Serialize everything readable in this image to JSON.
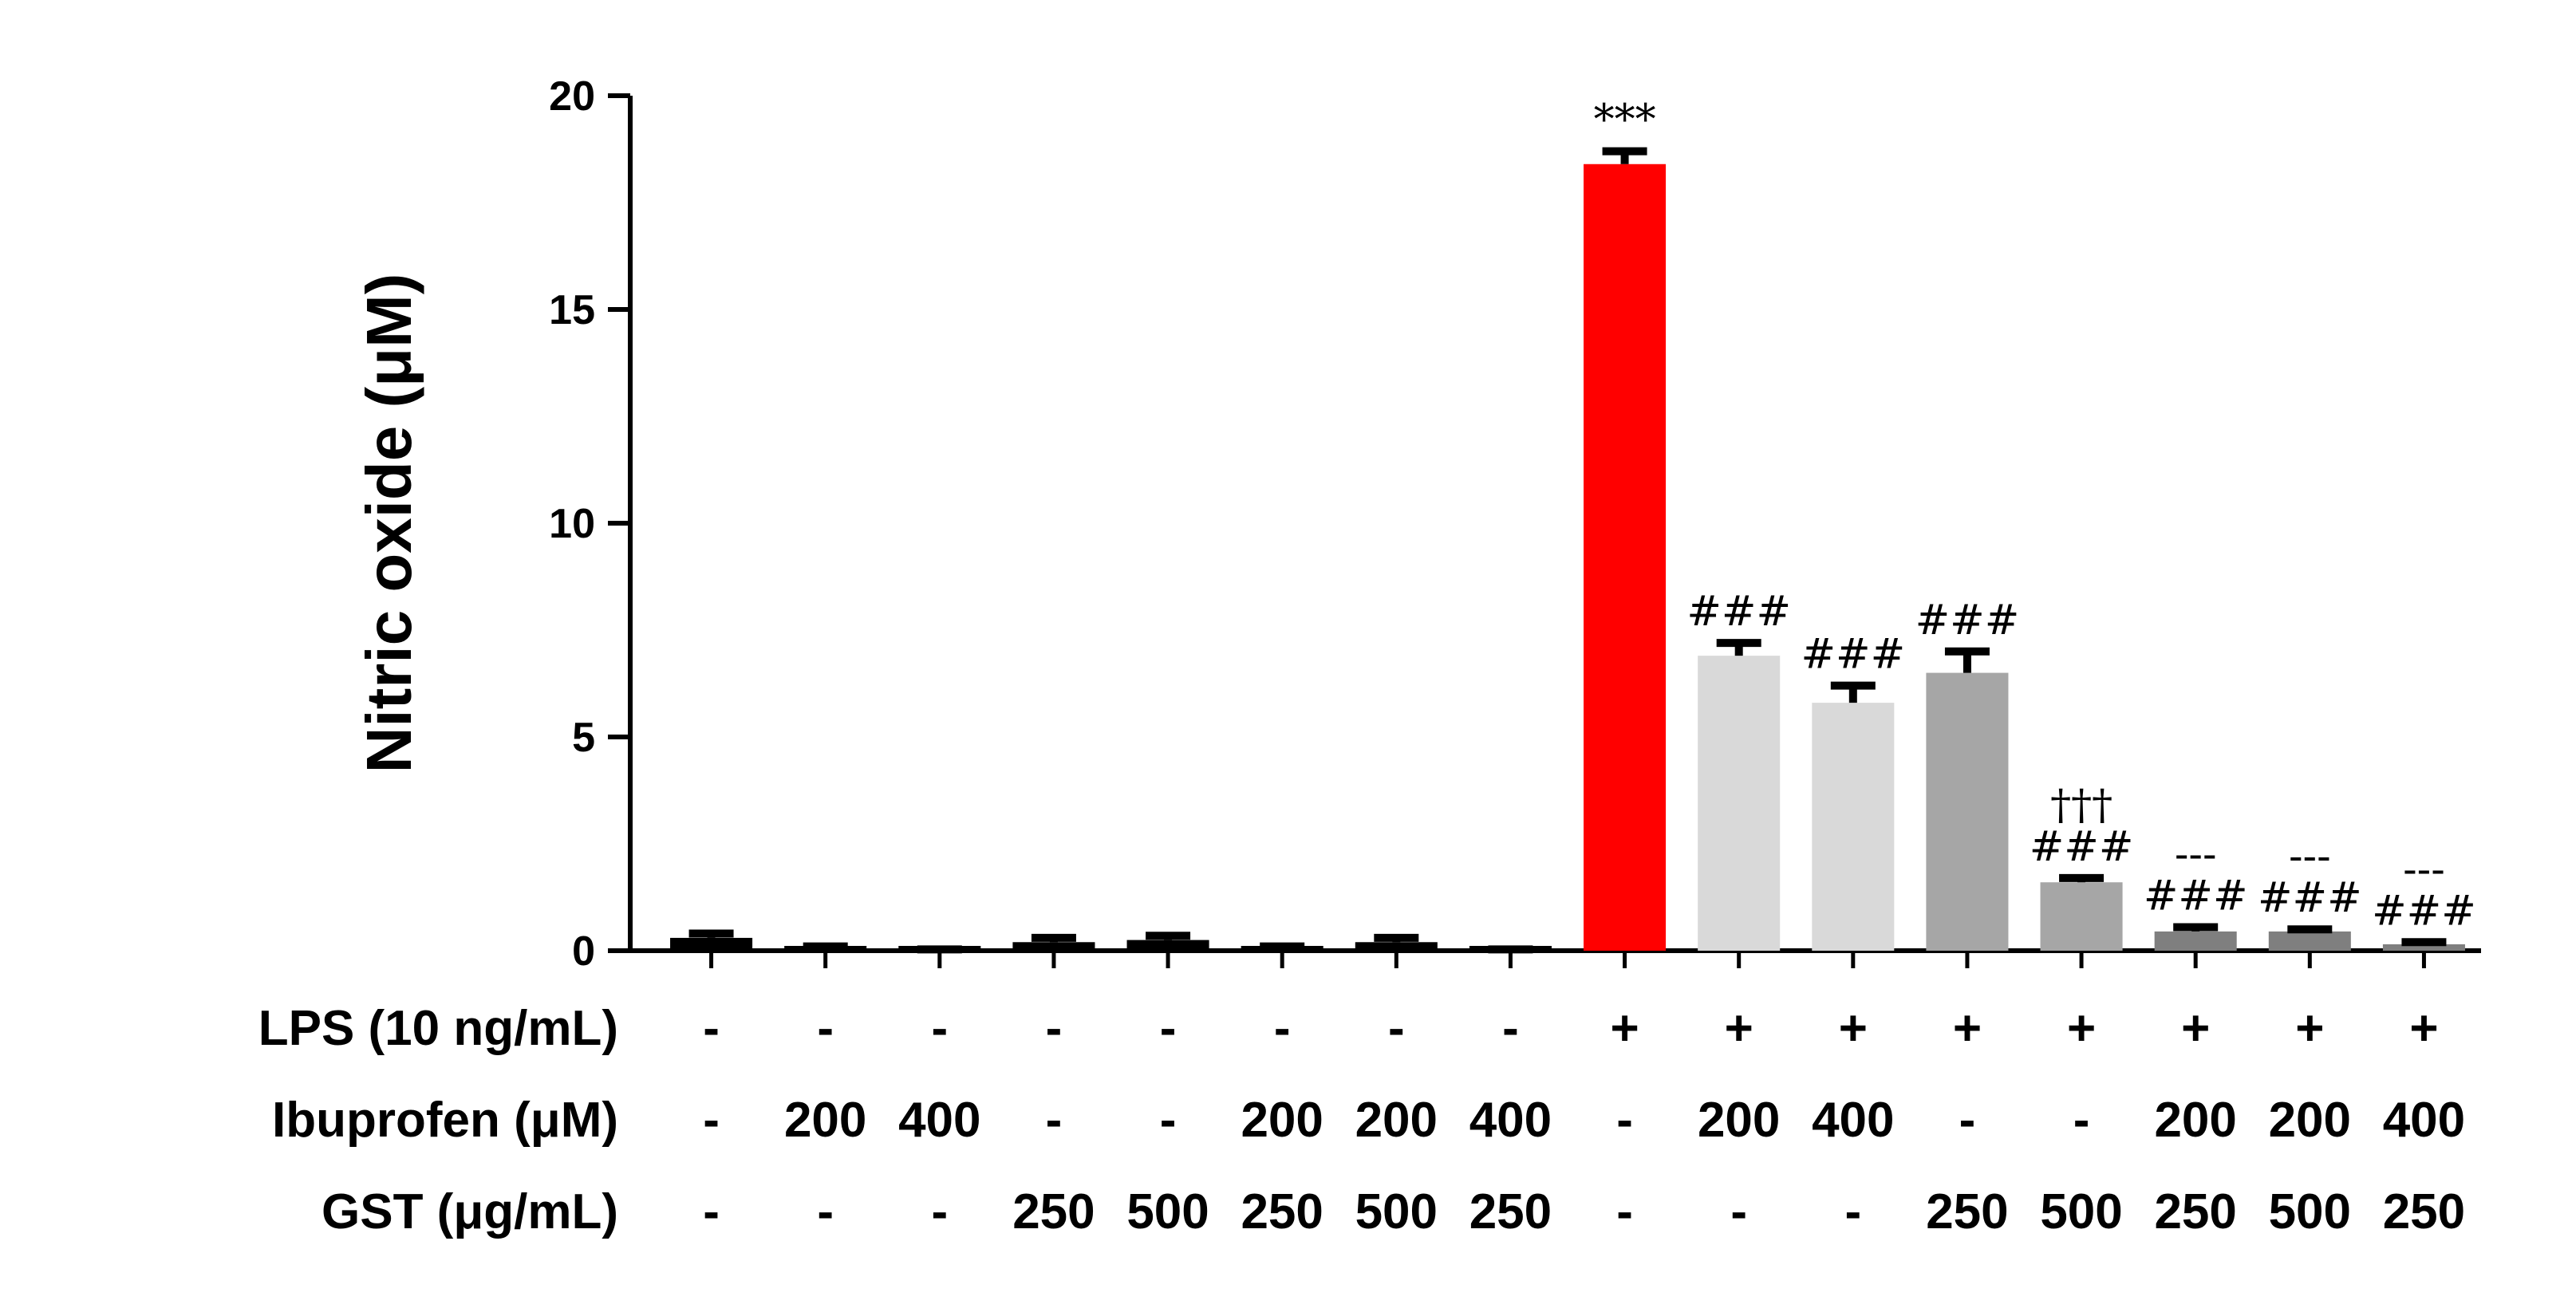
{
  "chart_data": {
    "type": "bar",
    "ylabel": "Nitric oxide (μM)",
    "ylim": [
      0,
      20
    ],
    "yticks": [
      0,
      5,
      10,
      15,
      20
    ],
    "values": [
      0.3,
      0.05,
      0.0,
      0.2,
      0.25,
      0.05,
      0.2,
      0.0,
      18.4,
      6.9,
      5.8,
      6.5,
      1.6,
      0.45,
      0.45,
      0.15
    ],
    "errors": [
      0.1,
      0.05,
      0.03,
      0.1,
      0.1,
      0.05,
      0.1,
      0.03,
      0.3,
      0.3,
      0.4,
      0.5,
      0.1,
      0.1,
      0.05,
      0.05
    ],
    "colors": [
      "#000000",
      "#000000",
      "#000000",
      "#000000",
      "#000000",
      "#000000",
      "#000000",
      "#000000",
      "#ff0000",
      "#d9d9d9",
      "#d9d9d9",
      "#a6a6a6",
      "#a6a6a6",
      "#7f7f7f",
      "#7f7f7f",
      "#7f7f7f"
    ],
    "annotations": [
      [],
      [],
      [],
      [],
      [],
      [],
      [],
      [],
      [
        "***"
      ],
      [
        "###"
      ],
      [
        "###"
      ],
      [
        "###"
      ],
      [
        "†††",
        "###"
      ],
      [
        "---",
        "###"
      ],
      [
        "---",
        "###"
      ],
      [
        "---",
        "###"
      ]
    ],
    "conditions": [
      {
        "label": "LPS (10 ng/mL)",
        "values": [
          "-",
          "-",
          "-",
          "-",
          "-",
          "-",
          "-",
          "-",
          "+",
          "+",
          "+",
          "+",
          "+",
          "+",
          "+",
          "+"
        ]
      },
      {
        "label": "Ibuprofen (μM)",
        "values": [
          "-",
          "200",
          "400",
          "-",
          "-",
          "200",
          "200",
          "400",
          "-",
          "200",
          "400",
          "-",
          "-",
          "200",
          "200",
          "400"
        ]
      },
      {
        "label": "GST (μg/mL)",
        "values": [
          "-",
          "-",
          "-",
          "250",
          "500",
          "250",
          "500",
          "250",
          "-",
          "-",
          "-",
          "250",
          "500",
          "250",
          "500",
          "250"
        ]
      }
    ]
  }
}
